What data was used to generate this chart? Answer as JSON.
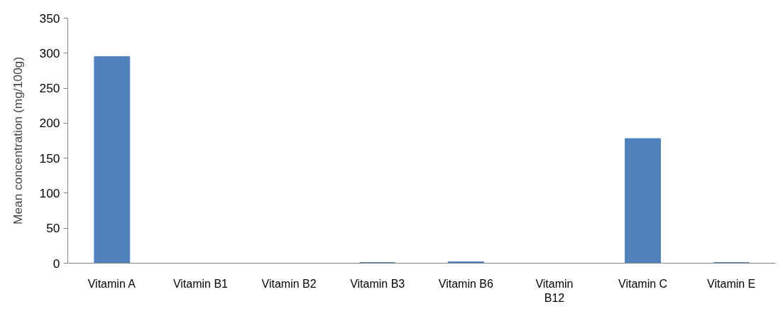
{
  "chart_data": {
    "type": "bar",
    "ylabel": "Mean concentration (mg/100g)",
    "categories": [
      "Vitamin A",
      "Vitamin B1",
      "Vitamin B2",
      "Vitamin B3",
      "Vitamin B6",
      "Vitamin B12",
      "Vitamin C",
      "Vitamin E"
    ],
    "values": [
      295,
      0,
      0,
      1,
      2,
      0,
      178,
      1
    ],
    "color": "#4f81bd",
    "ylim": [
      0,
      350
    ],
    "yticks": [
      0,
      50,
      100,
      150,
      200,
      250,
      300,
      350
    ],
    "grid": false
  }
}
